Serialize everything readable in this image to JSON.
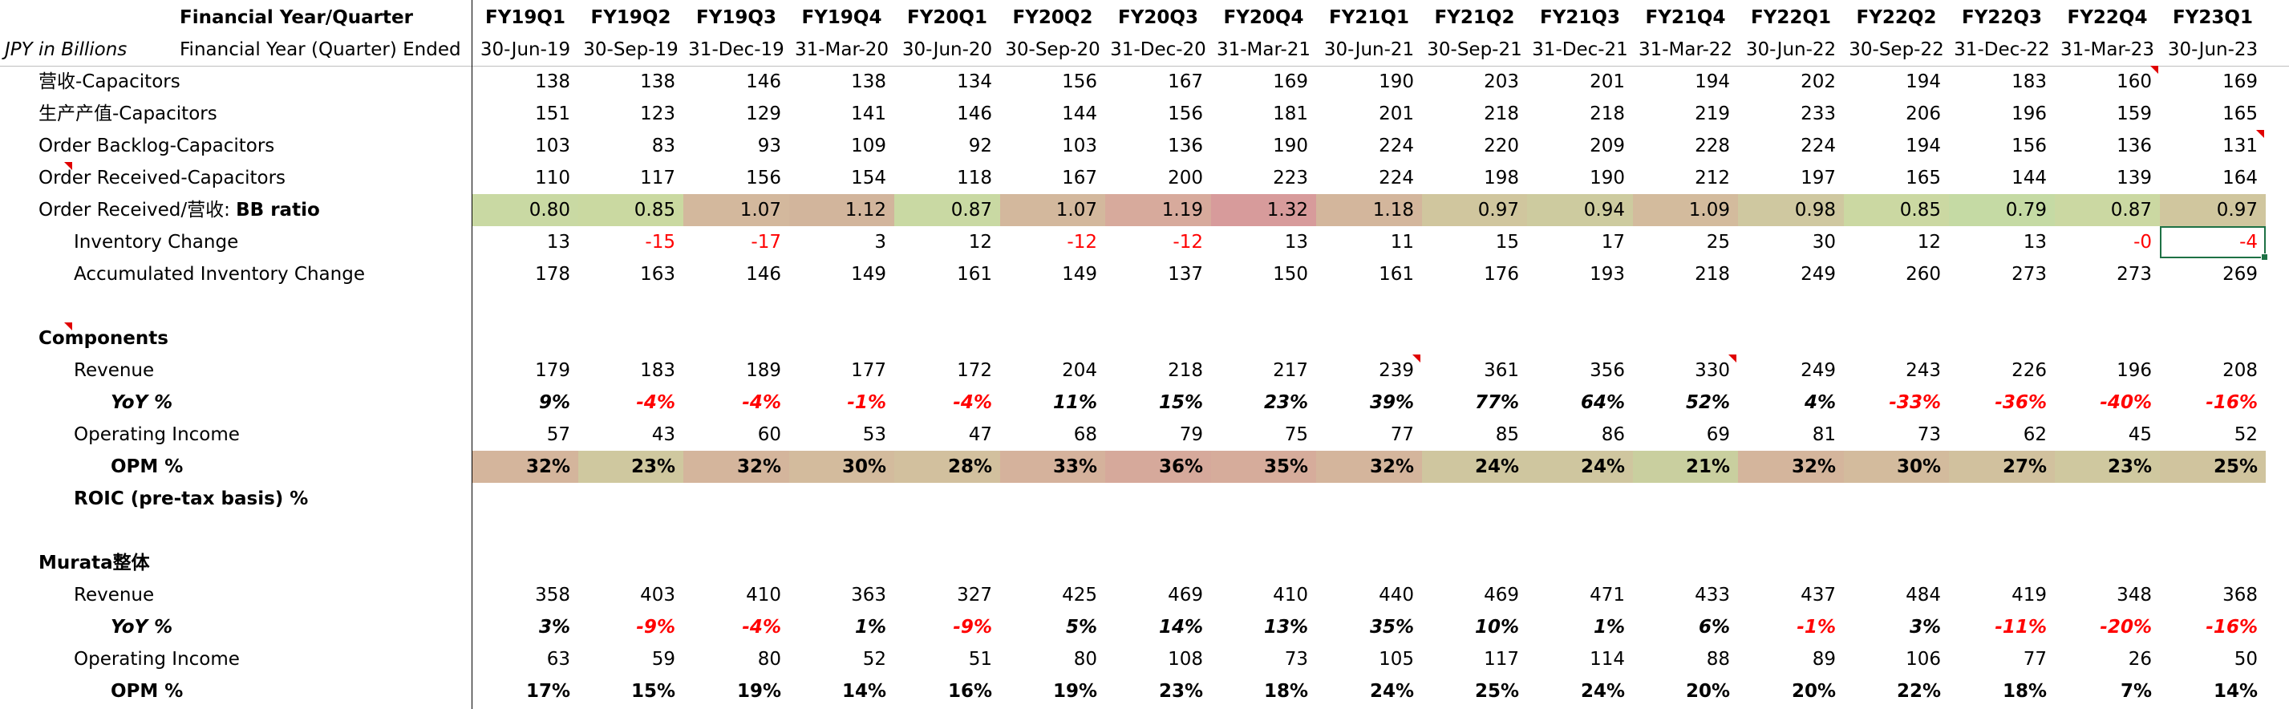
{
  "header": {
    "title_label": "Financial Year/Quarter",
    "unit_label": "JPY in Billions",
    "ended_label": "Financial Year (Quarter) Ended",
    "quarters": [
      "FY19Q1",
      "FY19Q2",
      "FY19Q3",
      "FY19Q4",
      "FY20Q1",
      "FY20Q2",
      "FY20Q3",
      "FY20Q4",
      "FY21Q1",
      "FY21Q2",
      "FY21Q3",
      "FY21Q4",
      "FY22Q1",
      "FY22Q2",
      "FY22Q3",
      "FY22Q4",
      "FY23Q1"
    ],
    "dates": [
      "30-Jun-19",
      "30-Sep-19",
      "31-Dec-19",
      "31-Mar-20",
      "30-Jun-20",
      "30-Sep-20",
      "31-Dec-20",
      "31-Mar-21",
      "30-Jun-21",
      "30-Sep-21",
      "31-Dec-21",
      "31-Mar-22",
      "30-Jun-22",
      "30-Sep-22",
      "31-Dec-22",
      "31-Mar-23",
      "30-Jun-23"
    ]
  },
  "rows": [
    {
      "label": "营收-Capacitors",
      "values": [
        "138",
        "138",
        "146",
        "138",
        "134",
        "156",
        "167",
        "169",
        "190",
        "203",
        "201",
        "194",
        "202",
        "194",
        "183",
        "160",
        "169"
      ]
    },
    {
      "label": "生产产值-Capacitors",
      "values": [
        "151",
        "123",
        "129",
        "141",
        "146",
        "144",
        "156",
        "181",
        "201",
        "218",
        "218",
        "219",
        "233",
        "206",
        "196",
        "159",
        "165"
      ]
    },
    {
      "label": "Order Backlog-Capacitors",
      "values": [
        "103",
        "83",
        "93",
        "109",
        "92",
        "103",
        "136",
        "190",
        "224",
        "220",
        "209",
        "228",
        "224",
        "194",
        "156",
        "136",
        "131"
      ]
    },
    {
      "label": "Order Received-Capacitors",
      "values": [
        "110",
        "117",
        "156",
        "154",
        "118",
        "167",
        "200",
        "223",
        "224",
        "198",
        "190",
        "212",
        "197",
        "165",
        "144",
        "139",
        "164"
      ]
    },
    {
      "label_prefix": "Order Received/营收: ",
      "label_bold": "BB ratio",
      "values": [
        "0.80",
        "0.85",
        "1.07",
        "1.12",
        "0.87",
        "1.07",
        "1.19",
        "1.32",
        "1.18",
        "0.97",
        "0.94",
        "1.09",
        "0.98",
        "0.85",
        "0.79",
        "0.87",
        "0.97"
      ],
      "colors": [
        "#c9d9a3",
        "#cad9a1",
        "#d3b89d",
        "#d2b59c",
        "#c9d9a3",
        "#d3b89d",
        "#d7aa9c",
        "#d79b9b",
        "#d3b69c",
        "#d0c69e",
        "#cdcb9f",
        "#d3bb9d",
        "#cfc8a0",
        "#cbd8a2",
        "#c5daa4",
        "#cbd8a2",
        "#d0c69e"
      ]
    },
    {
      "label": "Inventory Change",
      "values": [
        "13",
        "-15",
        "-17",
        "3",
        "12",
        "-12",
        "-12",
        "13",
        "11",
        "15",
        "17",
        "25",
        "30",
        "12",
        "13",
        "-0",
        "-4"
      ]
    },
    {
      "label": "Accumulated Inventory Change",
      "values": [
        "178",
        "163",
        "146",
        "149",
        "161",
        "149",
        "137",
        "150",
        "161",
        "176",
        "193",
        "218",
        "249",
        "260",
        "273",
        "273",
        "269"
      ]
    },
    {
      "label": "Components"
    },
    {
      "label": "Revenue",
      "values": [
        "179",
        "183",
        "189",
        "177",
        "172",
        "204",
        "218",
        "217",
        "239",
        "361",
        "356",
        "330",
        "249",
        "243",
        "226",
        "196",
        "208"
      ]
    },
    {
      "label": "YoY %",
      "values": [
        "9%",
        "-4%",
        "-4%",
        "-1%",
        "-4%",
        "11%",
        "15%",
        "23%",
        "39%",
        "77%",
        "64%",
        "52%",
        "4%",
        "-33%",
        "-36%",
        "-40%",
        "-16%"
      ]
    },
    {
      "label": "Operating Income",
      "values": [
        "57",
        "43",
        "60",
        "53",
        "47",
        "68",
        "79",
        "75",
        "77",
        "85",
        "86",
        "69",
        "81",
        "73",
        "62",
        "45",
        "52"
      ]
    },
    {
      "label": "OPM %",
      "values": [
        "32%",
        "23%",
        "32%",
        "30%",
        "28%",
        "33%",
        "36%",
        "35%",
        "32%",
        "24%",
        "24%",
        "21%",
        "32%",
        "30%",
        "27%",
        "23%",
        "25%"
      ],
      "colors": [
        "#d4b59c",
        "#cfc89f",
        "#d4b59c",
        "#d3bb9d",
        "#d2c09e",
        "#d5b29c",
        "#d6a99b",
        "#d6ac9b",
        "#d4b59c",
        "#cfc69f",
        "#cfc69f",
        "#c9cf9f",
        "#d4b59c",
        "#d3bb9d",
        "#d1c19e",
        "#cfc89f",
        "#d0c49e"
      ]
    },
    {
      "label": "ROIC  (pre-tax basis) %"
    },
    {
      "label": "Murata整体"
    },
    {
      "label": "Revenue",
      "values": [
        "358",
        "403",
        "410",
        "363",
        "327",
        "425",
        "469",
        "410",
        "440",
        "469",
        "471",
        "433",
        "437",
        "484",
        "419",
        "348",
        "368"
      ]
    },
    {
      "label": "YoY %",
      "values": [
        "3%",
        "-9%",
        "-4%",
        "1%",
        "-9%",
        "5%",
        "14%",
        "13%",
        "35%",
        "10%",
        "1%",
        "6%",
        "-1%",
        "3%",
        "-11%",
        "-20%",
        "-16%"
      ]
    },
    {
      "label": "Operating Income",
      "values": [
        "63",
        "59",
        "80",
        "52",
        "51",
        "80",
        "108",
        "73",
        "105",
        "117",
        "114",
        "88",
        "89",
        "106",
        "77",
        "26",
        "50"
      ]
    },
    {
      "label": "OPM %",
      "values": [
        "17%",
        "15%",
        "19%",
        "14%",
        "16%",
        "19%",
        "23%",
        "18%",
        "24%",
        "25%",
        "24%",
        "20%",
        "20%",
        "22%",
        "18%",
        "7%",
        "14%"
      ]
    }
  ]
}
